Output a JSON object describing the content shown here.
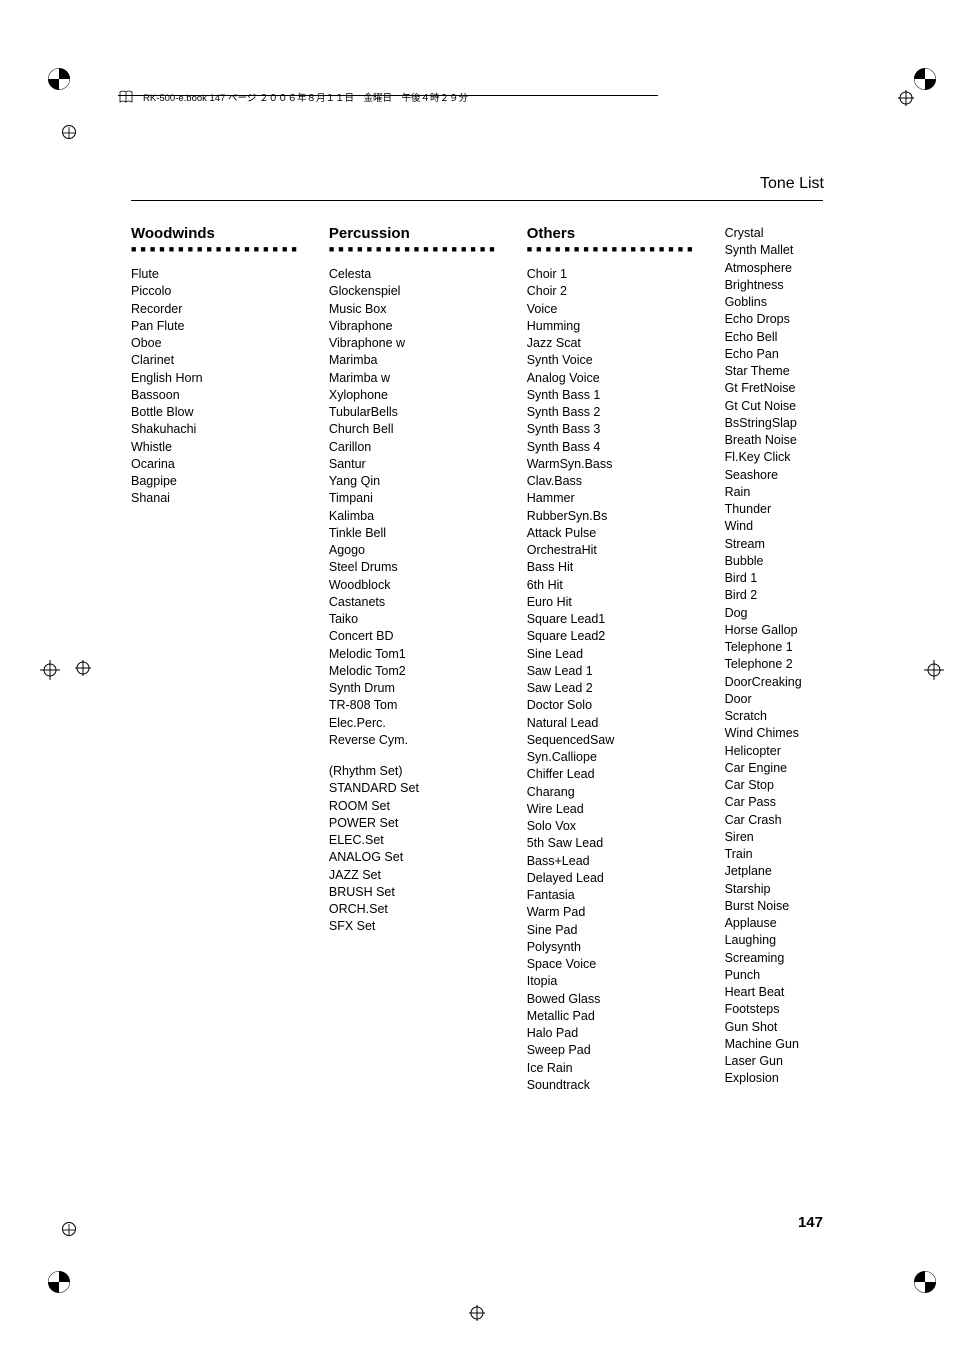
{
  "header": {
    "text": "RK-500-e.book  147 ページ  ２００６年８月１１日　金曜日　午後４時２９分"
  },
  "page_title": "Tone List",
  "page_number": "147",
  "columns": [
    {
      "header": "Woodwinds",
      "items": [
        "Flute",
        "Piccolo",
        "Recorder",
        "Pan Flute",
        "Oboe",
        "Clarinet",
        "English Horn",
        "Bassoon",
        "Bottle Blow",
        "Shakuhachi",
        "Whistle",
        "Ocarina",
        "Bagpipe",
        "Shanai"
      ]
    },
    {
      "header": "Percussion",
      "items": [
        "Celesta",
        "Glockenspiel",
        "Music Box",
        "Vibraphone",
        "Vibraphone w",
        "Marimba",
        "Marimba w",
        "Xylophone",
        "TubularBells",
        "Church Bell",
        "Carillon",
        "Santur",
        "Yang Qin",
        "Timpani",
        "Kalimba",
        "Tinkle Bell",
        "Agogo",
        "Steel Drums",
        "Woodblock",
        "Castanets",
        "Taiko",
        "Concert BD",
        "Melodic Tom1",
        "Melodic Tom2",
        "Synth Drum",
        "TR-808 Tom",
        "Elec.Perc.",
        "Reverse Cym."
      ],
      "items2": [
        "(Rhythm Set)",
        "STANDARD Set",
        "ROOM Set",
        "POWER Set",
        "ELEC.Set",
        "ANALOG Set",
        "JAZZ Set",
        "BRUSH Set",
        "ORCH.Set",
        "SFX Set"
      ]
    },
    {
      "header": "Others",
      "items": [
        "Choir 1",
        "Choir 2",
        "Voice",
        "Humming",
        "Jazz Scat",
        "Synth Voice",
        "Analog Voice",
        "Synth Bass 1",
        "Synth Bass 2",
        "Synth Bass 3",
        "Synth Bass 4",
        "WarmSyn.Bass",
        "Clav.Bass",
        "Hammer",
        "RubberSyn.Bs",
        "Attack Pulse",
        "OrchestraHit",
        "Bass Hit",
        "6th Hit",
        "Euro Hit",
        "Square Lead1",
        "Square Lead2",
        "Sine Lead",
        "Saw Lead 1",
        "Saw Lead 2",
        "Doctor Solo",
        "Natural Lead",
        "SequencedSaw",
        "Syn.Calliope",
        "Chiffer Lead",
        "Charang",
        "Wire Lead",
        "Solo Vox",
        "5th Saw Lead",
        "Bass+Lead",
        "Delayed Lead",
        "Fantasia",
        "Warm Pad",
        "Sine Pad",
        "Polysynth",
        "Space Voice",
        "Itopia",
        "Bowed Glass",
        "Metallic Pad",
        "Halo Pad",
        "Sweep Pad",
        "Ice Rain",
        "Soundtrack"
      ]
    },
    {
      "header": "",
      "items": [
        "Crystal",
        "Synth Mallet",
        "Atmosphere",
        "Brightness",
        "Goblins",
        "Echo Drops",
        "Echo Bell",
        "Echo Pan",
        "Star Theme",
        "Gt FretNoise",
        "Gt Cut Noise",
        "BsStringSlap",
        "Breath Noise",
        "Fl.Key Click",
        "Seashore",
        "Rain",
        "Thunder",
        "Wind",
        "Stream",
        "Bubble",
        "Bird 1",
        "Bird 2",
        "Dog",
        "Horse Gallop",
        "Telephone 1",
        "Telephone 2",
        "DoorCreaking",
        "Door",
        "Scratch",
        "Wind Chimes",
        "Helicopter",
        "Car Engine",
        "Car Stop",
        "Car Pass",
        "Car Crash",
        "Siren",
        "Train",
        "Jetplane",
        "Starship",
        "Burst Noise",
        "Applause",
        "Laughing",
        "Screaming",
        "Punch",
        "Heart Beat",
        "Footsteps",
        "Gun Shot",
        "Machine Gun",
        "Laser Gun",
        "Explosion"
      ]
    }
  ]
}
